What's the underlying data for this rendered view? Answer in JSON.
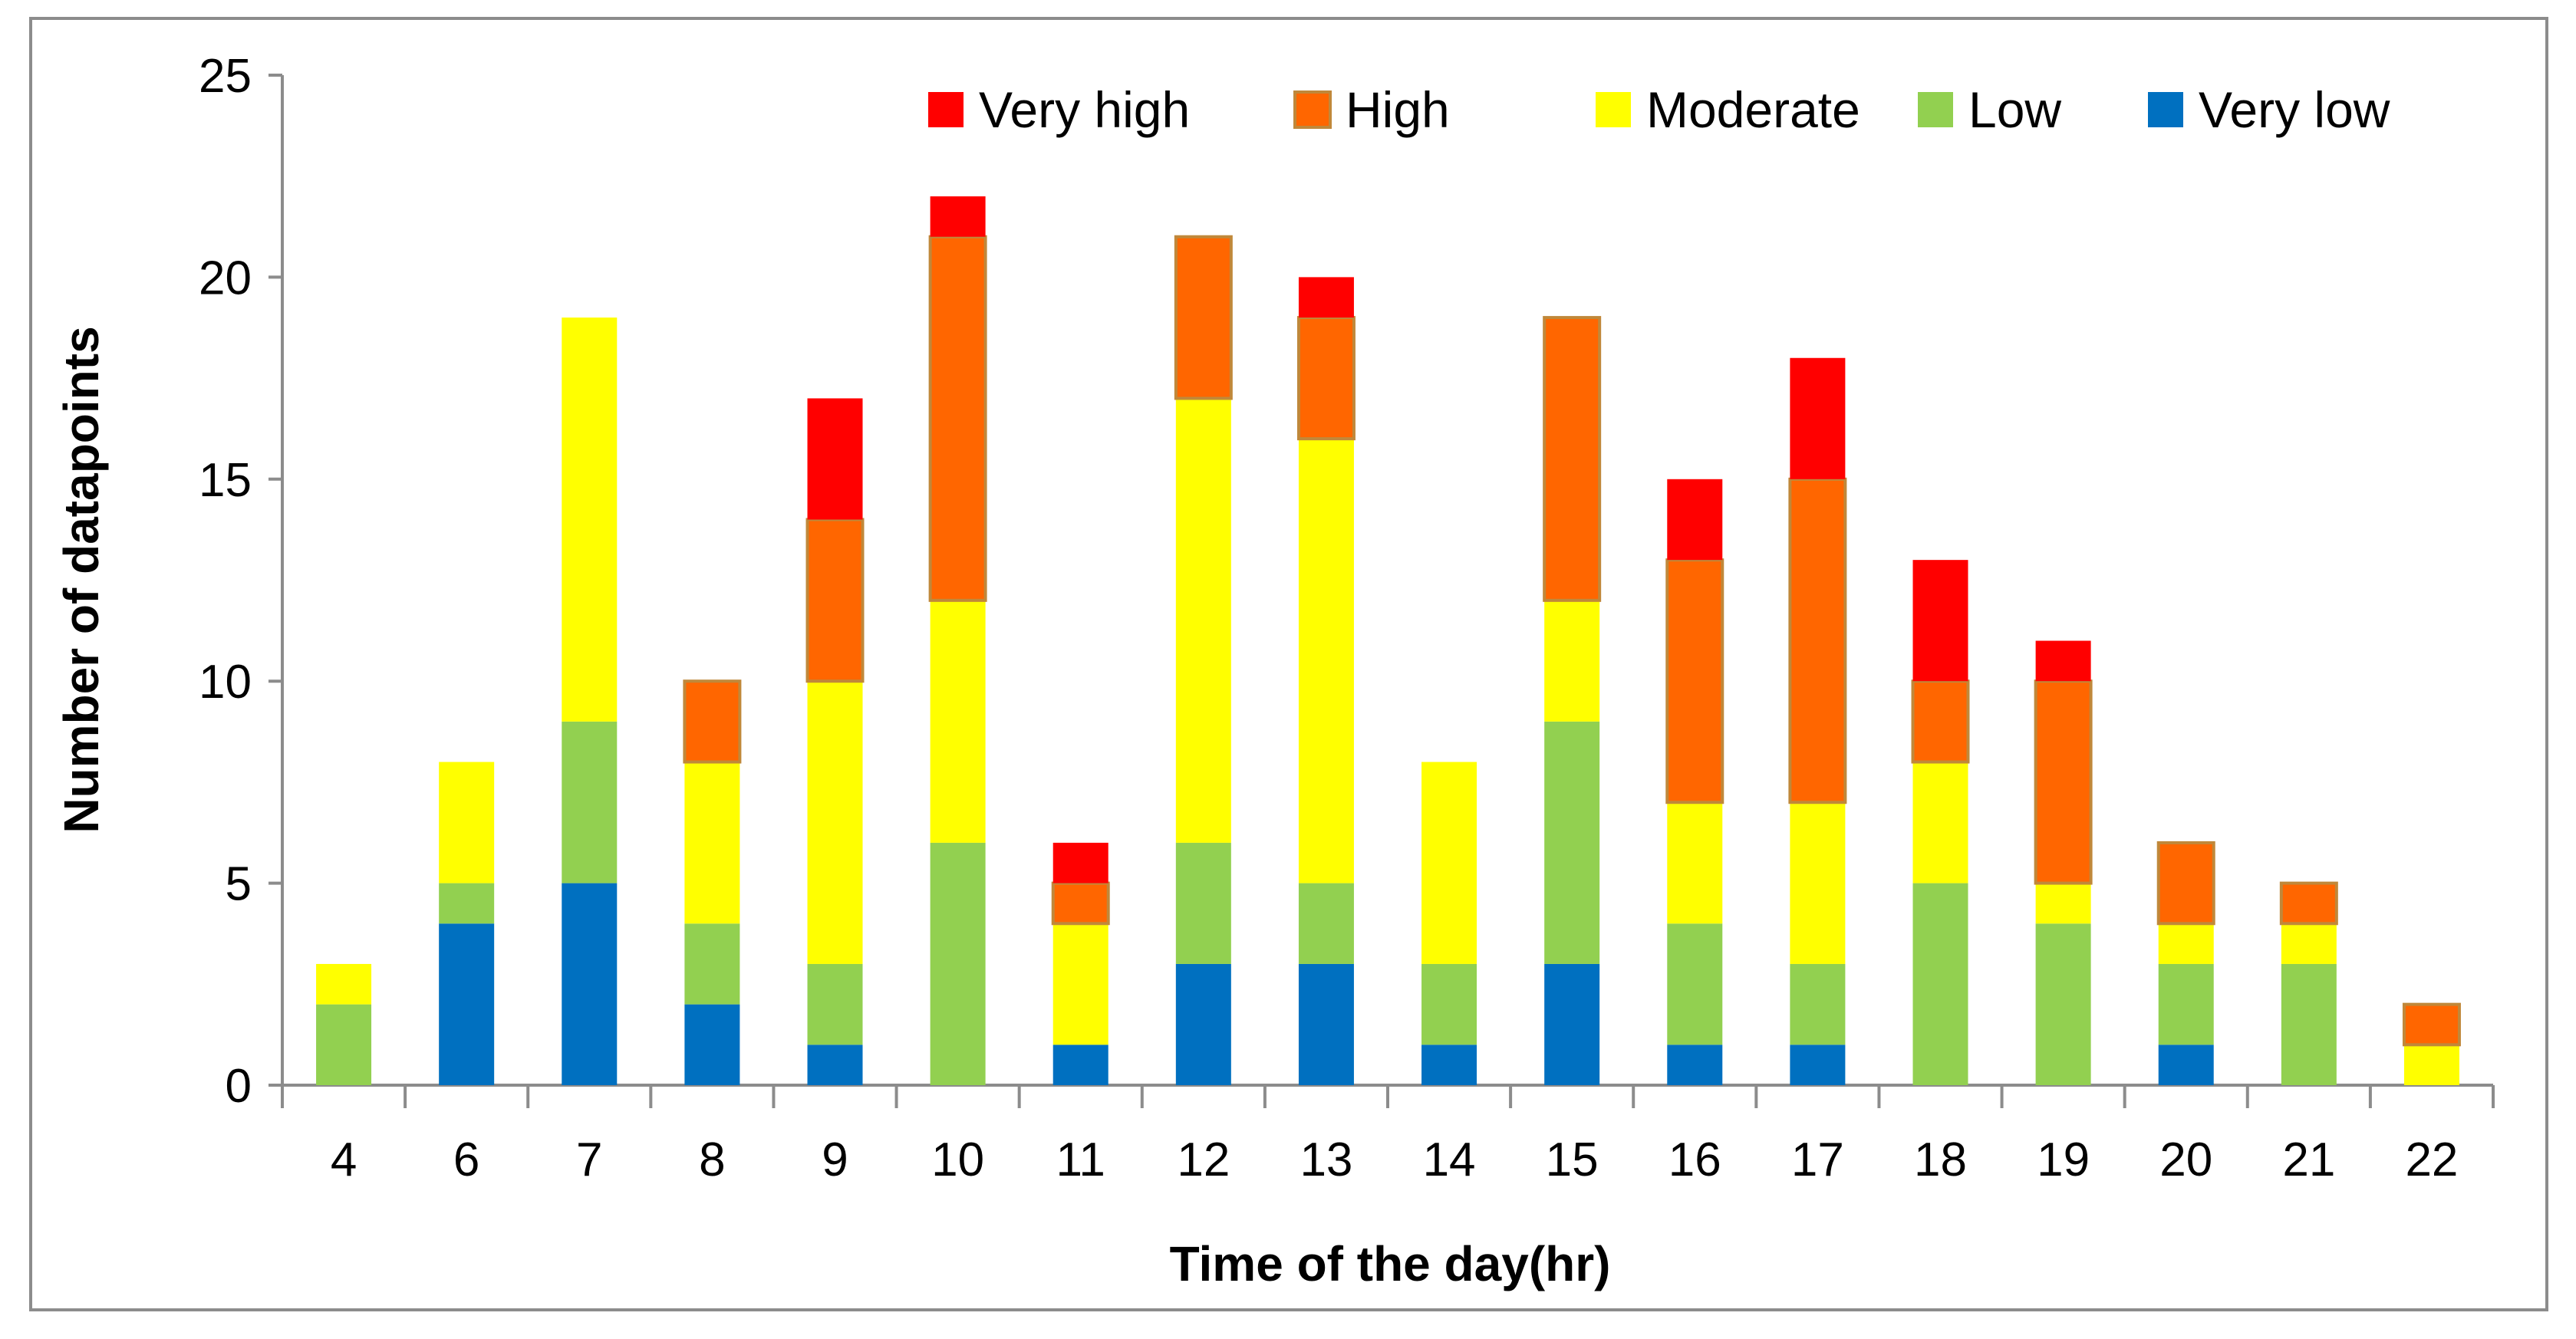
{
  "chart_data": {
    "type": "bar",
    "stacked": true,
    "title": "",
    "xlabel": "Time of the day(hr)",
    "ylabel": "Number of datapoints",
    "ylim": [
      0,
      25
    ],
    "yticks": [
      "0",
      "5",
      "10",
      "15",
      "20",
      "25"
    ],
    "grid": false,
    "legend_position": "top-right",
    "categories": [
      "4",
      "6",
      "7",
      "8",
      "9",
      "10",
      "11",
      "12",
      "13",
      "14",
      "15",
      "16",
      "17",
      "18",
      "19",
      "20",
      "21",
      "22"
    ],
    "series": [
      {
        "name": "Very low",
        "color": "#0070c0",
        "values": [
          0,
          4,
          5,
          2,
          1,
          0,
          1,
          3,
          3,
          1,
          3,
          1,
          1,
          0,
          0,
          1,
          0,
          0
        ]
      },
      {
        "name": "Low",
        "color": "#92d050",
        "values": [
          2,
          1,
          4,
          2,
          2,
          6,
          0,
          3,
          2,
          2,
          6,
          3,
          2,
          5,
          4,
          2,
          3,
          0
        ]
      },
      {
        "name": "Moderate",
        "color": "#ffff00",
        "values": [
          1,
          3,
          10,
          4,
          7,
          6,
          3,
          11,
          11,
          5,
          3,
          3,
          4,
          3,
          1,
          1,
          1,
          1
        ]
      },
      {
        "name": "High",
        "color": "#ff6600",
        "values": [
          0,
          0,
          0,
          2,
          4,
          9,
          1,
          4,
          3,
          0,
          7,
          6,
          8,
          2,
          5,
          2,
          1,
          1
        ]
      },
      {
        "name": "Very high",
        "color": "#ff0000",
        "values": [
          0,
          0,
          0,
          0,
          3,
          1,
          1,
          0,
          1,
          0,
          0,
          2,
          3,
          3,
          1,
          0,
          0,
          0
        ]
      }
    ],
    "legend_order": [
      "Very high",
      "High",
      "Moderate",
      "Low",
      "Very low"
    ]
  }
}
